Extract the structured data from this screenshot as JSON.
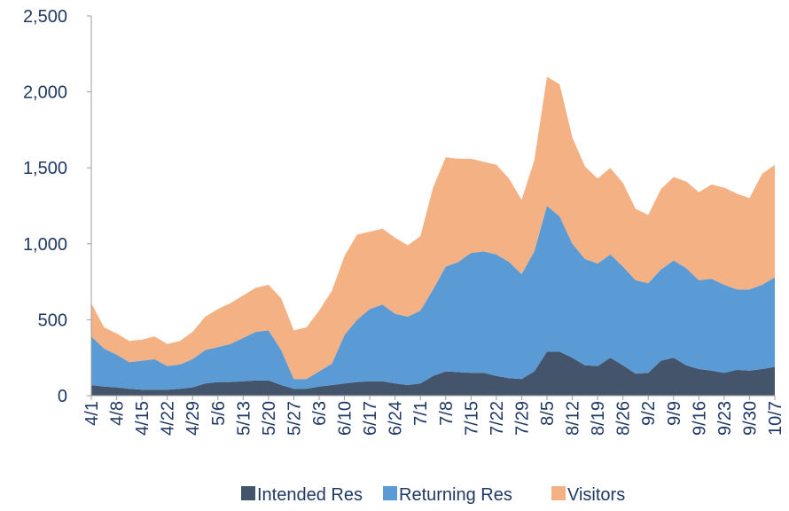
{
  "chart_data": {
    "type": "stacked-area",
    "categories": [
      "4/1",
      null,
      "4/8",
      null,
      "4/15",
      null,
      "4/22",
      null,
      "4/29",
      null,
      "5/6",
      null,
      "5/13",
      null,
      "5/20",
      null,
      "5/27",
      null,
      "6/3",
      null,
      "6/10",
      null,
      "6/17",
      null,
      "6/24",
      null,
      "7/1",
      null,
      "7/8",
      null,
      "7/15",
      null,
      "7/22",
      null,
      "7/29",
      null,
      "8/5",
      null,
      "8/12",
      null,
      "8/19",
      null,
      "8/26",
      null,
      "9/2",
      null,
      "9/9",
      null,
      "9/16",
      null,
      "9/23",
      null,
      "9/30",
      null,
      "10/7"
    ],
    "series": [
      {
        "name": "Intended Res",
        "color": "#44546a",
        "values": [
          70,
          60,
          55,
          45,
          40,
          40,
          40,
          45,
          55,
          80,
          90,
          90,
          95,
          100,
          100,
          70,
          45,
          45,
          60,
          70,
          80,
          90,
          95,
          95,
          80,
          70,
          80,
          130,
          160,
          155,
          150,
          150,
          130,
          115,
          110,
          160,
          290,
          290,
          250,
          200,
          195,
          250,
          200,
          145,
          150,
          230,
          250,
          200,
          175,
          165,
          150,
          170,
          165,
          175,
          190
        ]
      },
      {
        "name": "Returning Res",
        "color": "#5b9bd5",
        "values": [
          320,
          250,
          215,
          175,
          190,
          200,
          155,
          160,
          185,
          220,
          230,
          250,
          285,
          320,
          330,
          230,
          65,
          65,
          100,
          140,
          320,
          410,
          475,
          505,
          460,
          450,
          480,
          570,
          690,
          725,
          790,
          800,
          800,
          765,
          690,
          790,
          960,
          890,
          750,
          700,
          675,
          680,
          650,
          615,
          590,
          600,
          640,
          640,
          585,
          605,
          580,
          530,
          535,
          555,
          590
        ]
      },
      {
        "name": "Visitors",
        "color": "#f4b183",
        "values": [
          220,
          140,
          140,
          140,
          140,
          150,
          145,
          155,
          180,
          220,
          250,
          270,
          280,
          290,
          300,
          340,
          320,
          340,
          400,
          480,
          520,
          560,
          510,
          500,
          500,
          470,
          490,
          670,
          720,
          680,
          620,
          590,
          590,
          550,
          490,
          600,
          850,
          870,
          700,
          610,
          560,
          570,
          550,
          470,
          450,
          530,
          550,
          570,
          580,
          620,
          640,
          630,
          600,
          730,
          740
        ]
      }
    ],
    "ylim": [
      0,
      2500
    ],
    "yticks": [
      0,
      500,
      {
        "value": 1000,
        "label": "1,000"
      },
      {
        "value": 1500,
        "label": "1,500"
      },
      {
        "value": 2000,
        "label": "2,000"
      },
      {
        "value": 2500,
        "label": "2,500"
      }
    ],
    "legend": "bottom"
  }
}
